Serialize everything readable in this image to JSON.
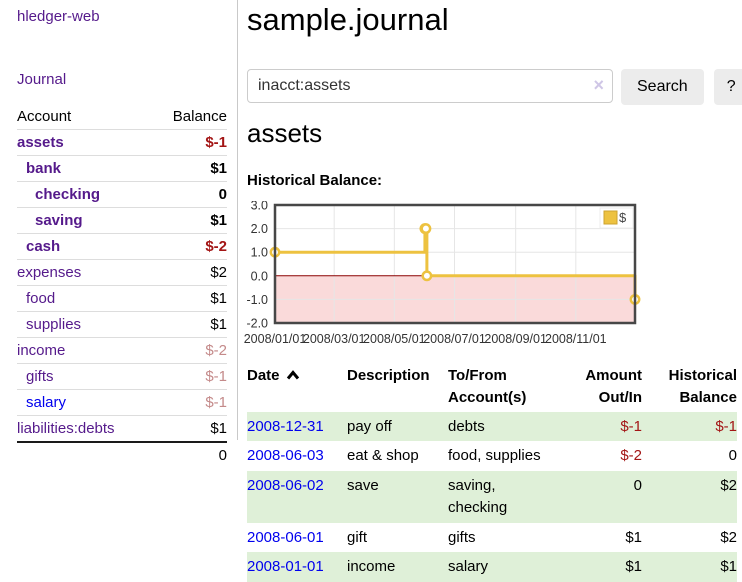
{
  "sidebar": {
    "app_title": "hledger-web",
    "journal_link": "Journal",
    "accounts_table": {
      "headers": {
        "account": "Account",
        "balance": "Balance"
      },
      "rows": [
        {
          "name": "assets",
          "balance": "$-1",
          "level": 1,
          "bold": true,
          "neg": "strong"
        },
        {
          "name": "bank",
          "balance": "$1",
          "level": 2,
          "bold": true
        },
        {
          "name": "checking",
          "balance": "0",
          "level": 3,
          "bold": true
        },
        {
          "name": "saving",
          "balance": "$1",
          "level": 3,
          "bold": true
        },
        {
          "name": "cash",
          "balance": "$-2",
          "level": 2,
          "bold": true,
          "neg": "strong"
        },
        {
          "name": "expenses",
          "balance": "$2",
          "level": 1
        },
        {
          "name": "food",
          "balance": "$1",
          "level": 2
        },
        {
          "name": "supplies",
          "balance": "$1",
          "level": 2
        },
        {
          "name": "income",
          "balance": "$-2",
          "level": 1,
          "neg": "soft"
        },
        {
          "name": "gifts",
          "balance": "$-1",
          "level": 2,
          "neg": "soft"
        },
        {
          "name": "salary",
          "balance": "$-1",
          "level": 2,
          "neg": "soft",
          "blue": true
        },
        {
          "name": "liabilities:debts",
          "balance": "$1",
          "level": 1
        }
      ],
      "total": "0"
    }
  },
  "main": {
    "title": "sample.journal",
    "search": {
      "value": "inacct:assets",
      "clear_icon": "×",
      "button_label": "Search",
      "help_label": "?"
    },
    "account_heading": "assets",
    "chart_label": "Historical Balance:",
    "register": {
      "headers": {
        "date": "Date",
        "description": "Description",
        "tofrom": "To/From Account(s)",
        "amount": "Amount Out/In",
        "balance": "Historical Balance"
      },
      "rows": [
        {
          "date": "2008-12-31",
          "description": "pay off",
          "accounts": "debts",
          "amount": "$-1",
          "balance": "$-1",
          "amount_neg": true,
          "balance_neg": true
        },
        {
          "date": "2008-06-03",
          "description": "eat & shop",
          "accounts": "food, supplies",
          "amount": "$-2",
          "balance": "0",
          "amount_neg": true
        },
        {
          "date": "2008-06-02",
          "description": "save",
          "accounts": "saving, checking",
          "amount": "0",
          "balance": "$2"
        },
        {
          "date": "2008-06-01",
          "description": "gift",
          "accounts": "gifts",
          "amount": "$1",
          "balance": "$2"
        },
        {
          "date": "2008-01-01",
          "description": "income",
          "accounts": "salary",
          "amount": "$1",
          "balance": "$1"
        }
      ]
    }
  },
  "chart_data": {
    "type": "line",
    "title": "Historical Balance",
    "steps": true,
    "series": [
      {
        "name": "$",
        "points": [
          [
            "2008-01-01",
            1
          ],
          [
            "2008-06-01",
            2
          ],
          [
            "2008-06-02",
            2
          ],
          [
            "2008-06-03",
            0
          ],
          [
            "2008-12-31",
            -1
          ]
        ]
      }
    ],
    "x_ticks": [
      "2008/01/01",
      "2008/03/01",
      "2008/05/01",
      "2008/07/01",
      "2008/09/01",
      "2008/11/01"
    ],
    "y_ticks": [
      -2.0,
      -1.0,
      0.0,
      1.0,
      2.0,
      3.0
    ],
    "xlim": [
      "2008-01-01",
      "2008-12-31"
    ],
    "ylim": [
      -2,
      3
    ],
    "grid": true,
    "legend_position": "top-right",
    "legend_label": "$",
    "colors": {
      "line": "#EDC240",
      "marker_fill": "#ffffff",
      "negative_fill": "#fadada",
      "zero_line": "#8b0000",
      "grid": "#e6e6e6",
      "border": "#474747"
    }
  },
  "colors": {
    "link_purple": "#551a8b",
    "link_blue": "#0000ee",
    "negative_strong": "#a31515",
    "negative_soft": "#c48a8a",
    "row_stripe_green": "#dff0d8"
  }
}
